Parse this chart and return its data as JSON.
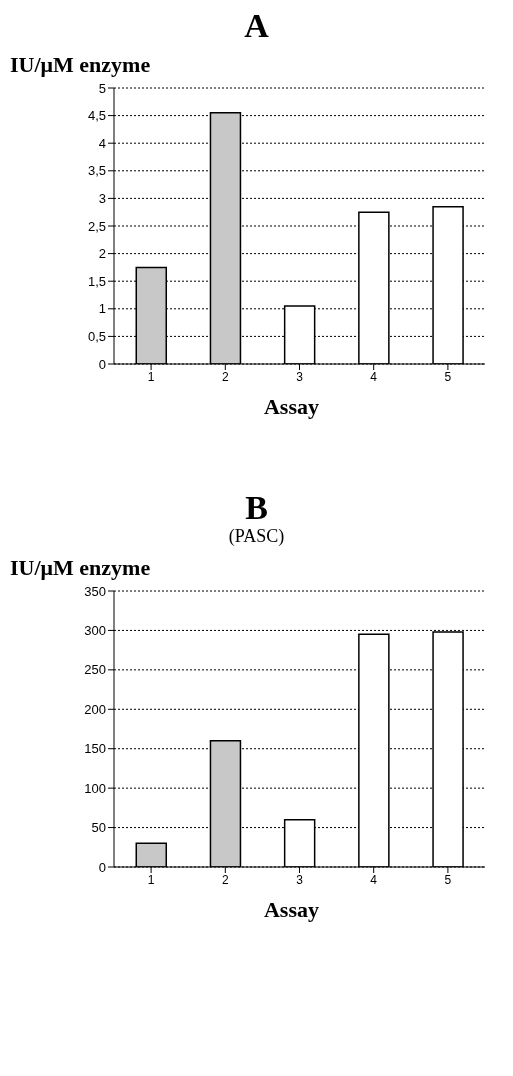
{
  "chart_data": [
    {
      "type": "bar",
      "title": "A",
      "ylabel": "IU/μM enzyme",
      "xlabel": "Assay",
      "categories": [
        "1",
        "2",
        "3",
        "4",
        "5"
      ],
      "values": [
        1.75,
        4.55,
        1.05,
        2.75,
        2.85
      ],
      "colors": [
        "#c8c8c8",
        "#c8c8c8",
        "#ffffff",
        "#ffffff",
        "#ffffff"
      ],
      "ylim": [
        0,
        5
      ],
      "yticks": [
        0,
        {
          "value": 0.5,
          "label": "0,5"
        },
        1,
        {
          "value": 1.5,
          "label": "1,5"
        },
        2,
        {
          "value": 2.5,
          "label": "2,5"
        },
        3,
        {
          "value": 3.5,
          "label": "3,5"
        },
        4,
        {
          "value": 4.5,
          "label": "4,5"
        },
        5
      ],
      "grid": "y",
      "legend": false
    },
    {
      "type": "bar",
      "title": "B",
      "subtitle": "(PASC)",
      "ylabel": "IU/μM enzyme",
      "xlabel": "Assay",
      "categories": [
        "1",
        "2",
        "3",
        "4",
        "5"
      ],
      "values": [
        30,
        160,
        60,
        295,
        298
      ],
      "colors": [
        "#c8c8c8",
        "#c8c8c8",
        "#ffffff",
        "#ffffff",
        "#ffffff"
      ],
      "ylim": [
        0,
        350
      ],
      "yticks": [
        0,
        50,
        100,
        150,
        200,
        250,
        300,
        350
      ],
      "grid": "y",
      "legend": false
    }
  ]
}
